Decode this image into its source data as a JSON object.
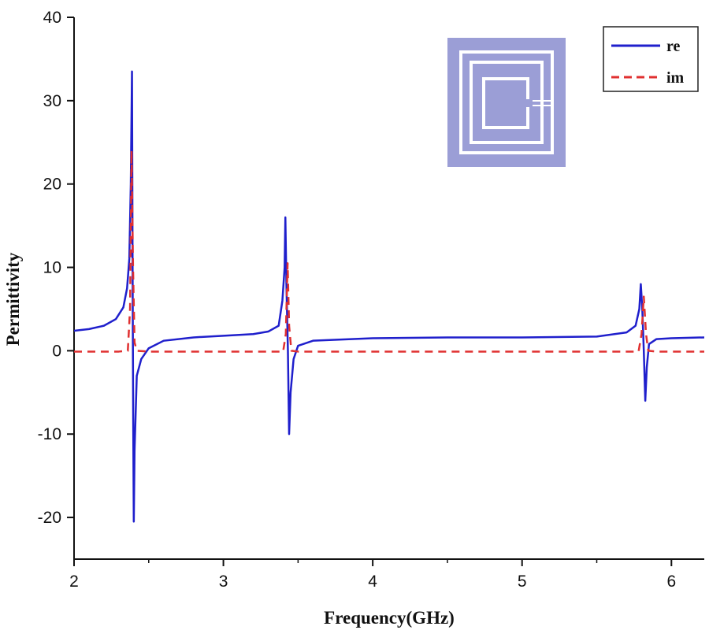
{
  "chart_data": {
    "type": "line",
    "title": "",
    "xlabel": "Frequency(GHz)",
    "ylabel": "Permittivity",
    "xlim": [
      2,
      6.22
    ],
    "ylim": [
      -25,
      40
    ],
    "x_ticks": [
      "2",
      "3",
      "4",
      "5",
      "6"
    ],
    "y_ticks": [
      "-20",
      "-10",
      "0",
      "10",
      "20",
      "30",
      "40"
    ],
    "grid": false,
    "legend": {
      "placement": "top-right",
      "entries": [
        "re",
        "im"
      ]
    },
    "inset": {
      "description": "square split ring resonator unit cell",
      "fill": "#9b9ed6",
      "ring_color": "#ffffff"
    },
    "series": [
      {
        "name": "re",
        "color": "#1f1fcc",
        "style": "solid",
        "points": [
          [
            2.0,
            2.4
          ],
          [
            2.1,
            2.6
          ],
          [
            2.2,
            3.0
          ],
          [
            2.28,
            3.8
          ],
          [
            2.33,
            5.2
          ],
          [
            2.355,
            7.5
          ],
          [
            2.37,
            11.0
          ],
          [
            2.38,
            20.0
          ],
          [
            2.388,
            33.5
          ],
          [
            2.392,
            10.0
          ],
          [
            2.396,
            -8.0
          ],
          [
            2.4,
            -20.5
          ],
          [
            2.405,
            -12.0
          ],
          [
            2.42,
            -3.0
          ],
          [
            2.45,
            -1.0
          ],
          [
            2.5,
            0.3
          ],
          [
            2.6,
            1.2
          ],
          [
            2.8,
            1.6
          ],
          [
            3.0,
            1.8
          ],
          [
            3.2,
            2.0
          ],
          [
            3.3,
            2.3
          ],
          [
            3.37,
            3.0
          ],
          [
            3.395,
            6.0
          ],
          [
            3.41,
            10.0
          ],
          [
            3.415,
            16.0
          ],
          [
            3.422,
            8.0
          ],
          [
            3.432,
            0.0
          ],
          [
            3.44,
            -10.0
          ],
          [
            3.45,
            -5.0
          ],
          [
            3.47,
            -1.0
          ],
          [
            3.5,
            0.6
          ],
          [
            3.6,
            1.2
          ],
          [
            4.0,
            1.5
          ],
          [
            4.5,
            1.6
          ],
          [
            5.0,
            1.6
          ],
          [
            5.5,
            1.7
          ],
          [
            5.7,
            2.2
          ],
          [
            5.76,
            3.0
          ],
          [
            5.785,
            5.0
          ],
          [
            5.795,
            8.0
          ],
          [
            5.805,
            5.0
          ],
          [
            5.815,
            0.0
          ],
          [
            5.825,
            -6.0
          ],
          [
            5.835,
            -2.0
          ],
          [
            5.85,
            0.8
          ],
          [
            5.9,
            1.4
          ],
          [
            6.0,
            1.5
          ],
          [
            6.22,
            1.6
          ]
        ]
      },
      {
        "name": "im",
        "color": "#e03030",
        "style": "dashed",
        "points": [
          [
            2.0,
            -0.1
          ],
          [
            2.3,
            -0.1
          ],
          [
            2.36,
            0.0
          ],
          [
            2.375,
            5.0
          ],
          [
            2.385,
            24.0
          ],
          [
            2.395,
            10.0
          ],
          [
            2.405,
            1.0
          ],
          [
            2.42,
            0.0
          ],
          [
            2.5,
            -0.1
          ],
          [
            3.4,
            -0.1
          ],
          [
            3.418,
            2.0
          ],
          [
            3.43,
            10.5
          ],
          [
            3.44,
            3.0
          ],
          [
            3.455,
            0.0
          ],
          [
            3.5,
            -0.1
          ],
          [
            5.78,
            -0.1
          ],
          [
            5.8,
            2.0
          ],
          [
            5.815,
            6.5
          ],
          [
            5.83,
            2.0
          ],
          [
            5.845,
            0.0
          ],
          [
            5.9,
            -0.1
          ],
          [
            6.22,
            -0.1
          ]
        ]
      }
    ]
  }
}
